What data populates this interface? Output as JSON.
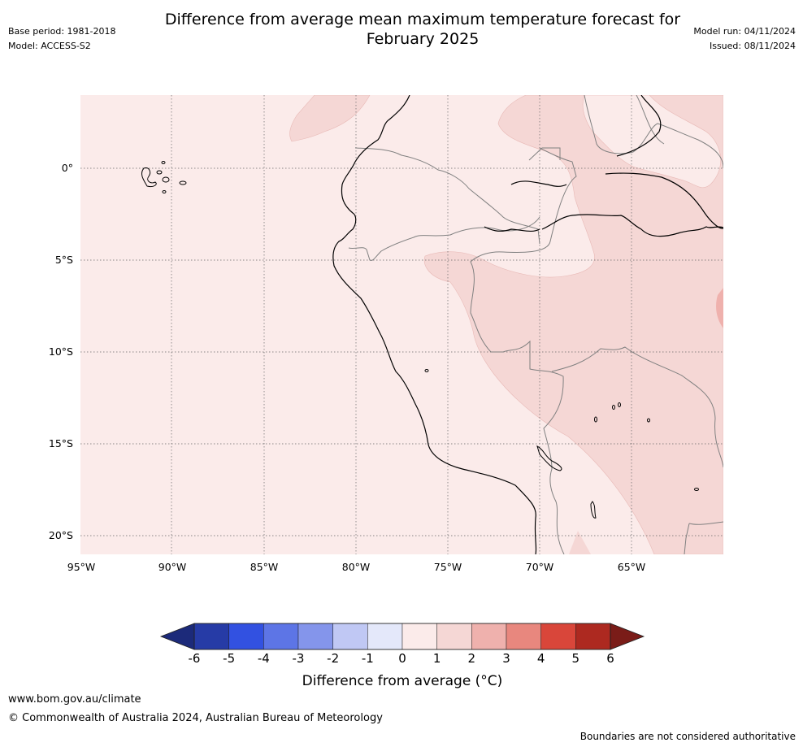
{
  "header": {
    "title_line1": "Difference from average mean maximum temperature forecast for",
    "title_line2": "February 2025",
    "base_period": "Base period: 1981-2018",
    "model": "Model: ACCESS-S2",
    "model_run": "Model run: 04/11/2024",
    "issued": "Issued: 08/11/2024"
  },
  "map": {
    "lat_labels": [
      "0°",
      "5°S",
      "10°S",
      "15°S",
      "20°S"
    ],
    "lon_labels": [
      "95°W",
      "90°W",
      "85°W",
      "80°W",
      "75°W",
      "70°W",
      "65°W"
    ],
    "colors": {
      "background": "#fbebea",
      "zone_1_2": "#f5d7d5",
      "zone_2_3": "#efb1ad",
      "coastline": "#000000",
      "border": "#808080",
      "grid": "#666666"
    }
  },
  "colorbar": {
    "ticks": [
      "-6",
      "-5",
      "-4",
      "-3",
      "-2",
      "-1",
      "0",
      "1",
      "2",
      "3",
      "4",
      "5",
      "6"
    ],
    "colors": [
      "#263ba6",
      "#3251e1",
      "#5d75e6",
      "#8495eb",
      "#c0c8f4",
      "#e4e8fa",
      "#fbebea",
      "#f5d7d5",
      "#efb1ad",
      "#e8877e",
      "#d9463a",
      "#ad2920"
    ],
    "low_extend_color": "#1c2a7a",
    "high_extend_color": "#7a1c18",
    "label": "Difference from average (°C)"
  },
  "footer": {
    "url": "www.bom.gov.au/climate",
    "copyright": "© Commonwealth of Australia 2024, Australian Bureau of Meteorology",
    "disclaimer": "Boundaries are not considered authoritative"
  }
}
